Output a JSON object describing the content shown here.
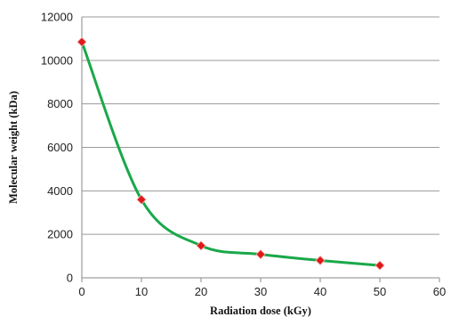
{
  "chart_data": {
    "type": "scatter",
    "title": "",
    "xlabel": "Radiation dose (kGy)",
    "ylabel": "Molecular weight (kDa)",
    "xlim": [
      0,
      60
    ],
    "ylim": [
      0,
      12000
    ],
    "xticks": [
      0,
      10,
      20,
      30,
      40,
      50,
      60
    ],
    "yticks": [
      0,
      2000,
      4000,
      6000,
      8000,
      10000,
      12000
    ],
    "grid": "horizontal",
    "legend": "none",
    "series": [
      {
        "x": [
          0,
          10,
          20,
          30,
          40,
          50
        ],
        "y": [
          10850,
          3600,
          1480,
          1080,
          800,
          570
        ],
        "marker": "diamond",
        "marker_color": "#e01818",
        "line": "smooth",
        "line_color": "#1aa84a"
      }
    ]
  }
}
